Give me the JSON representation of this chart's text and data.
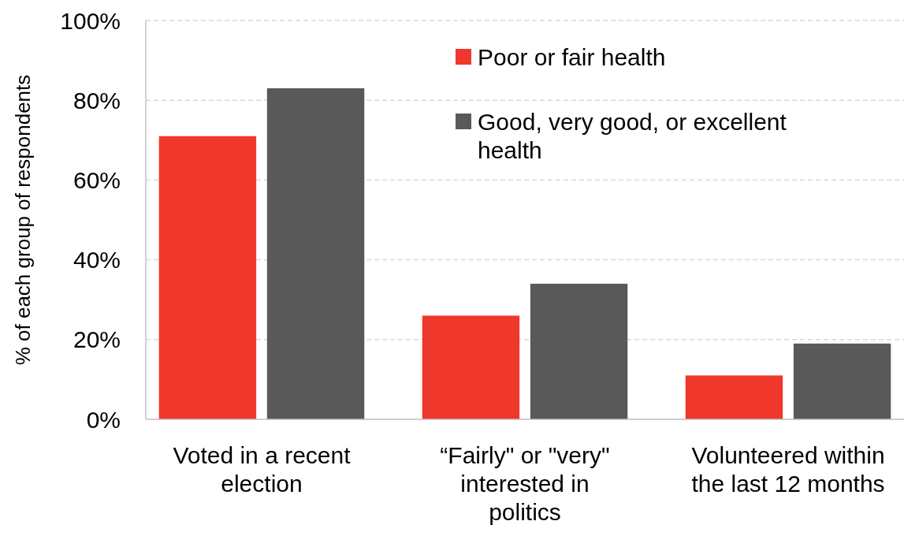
{
  "chart_data": {
    "type": "bar",
    "ylabel": "% of each group of respondents",
    "categories": [
      "Voted in a recent election",
      "“Fairly\" or \"very\" interested in politics",
      "Volunteered within the last 12 months"
    ],
    "series": [
      {
        "name": "Poor or fair health",
        "color": "#f0372b",
        "values": [
          71,
          26,
          11
        ]
      },
      {
        "name": "Good, very good, or excellent health",
        "color": "#595959",
        "values": [
          83,
          34,
          19
        ]
      }
    ],
    "ylim": [
      0,
      100
    ],
    "yticks": [
      {
        "value": 0,
        "label": "0%"
      },
      {
        "value": 20,
        "label": "20%"
      },
      {
        "value": 40,
        "label": "40%"
      },
      {
        "value": 60,
        "label": "60%"
      },
      {
        "value": 80,
        "label": "80%"
      },
      {
        "value": 100,
        "label": "100%"
      }
    ],
    "grid": "y",
    "legend": "top right"
  }
}
